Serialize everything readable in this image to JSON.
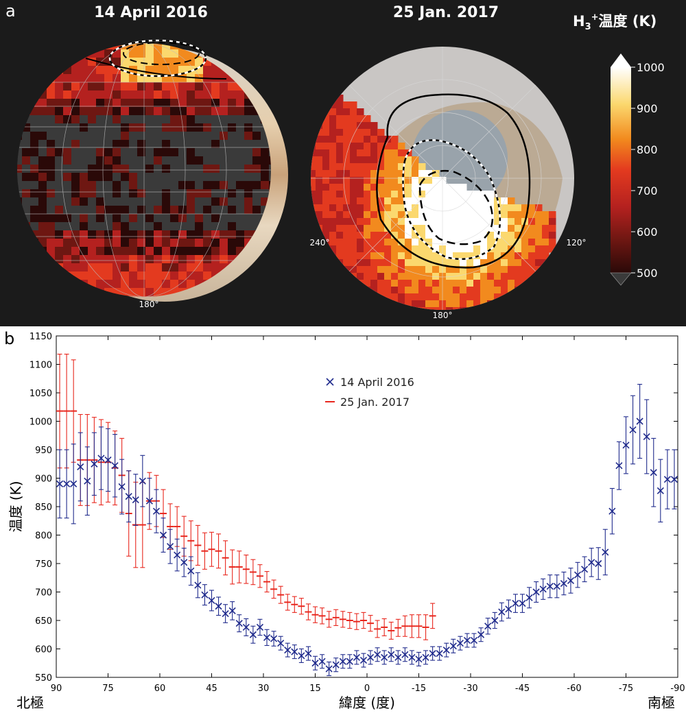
{
  "panel_a": {
    "letter": "a",
    "map_left": {
      "title": "14 April 2016",
      "lon_labels": [
        "180°"
      ]
    },
    "map_right": {
      "title": "25 Jan. 2017",
      "lon_labels": [
        "240°",
        "120°",
        "180°"
      ]
    },
    "colorbar": {
      "title_prefix": "H",
      "title_sub": "3",
      "title_sup": "+",
      "title_suffix": "温度 (K)",
      "ticks": [
        1000,
        900,
        800,
        700,
        600,
        500
      ],
      "colors": [
        "#ffffff",
        "#fbd86e",
        "#f28a1e",
        "#e33a1f",
        "#b4211f",
        "#6e1712",
        "#2a0908",
        "#3a3a3a"
      ]
    }
  },
  "panel_b": {
    "letter": "b",
    "left_label": "北極",
    "right_label": "南極",
    "chart_data": {
      "type": "scatter",
      "xlabel": "緯度 (度)",
      "ylabel": "温度 (K)",
      "xlim": [
        90,
        -90
      ],
      "ylim": [
        550,
        1150
      ],
      "xticks": [
        90,
        75,
        60,
        45,
        30,
        15,
        0,
        -15,
        -30,
        -45,
        -60,
        -75,
        -90
      ],
      "yticks": [
        550,
        600,
        650,
        700,
        750,
        800,
        850,
        900,
        950,
        1000,
        1050,
        1100,
        1150
      ],
      "legend_position": "top-center",
      "series": [
        {
          "name": "14 April 2016",
          "color": "#1f2a8c",
          "marker": "x",
          "x": [
            89,
            87,
            85,
            83,
            81,
            79,
            77,
            75,
            73,
            71,
            69,
            67,
            65,
            63,
            61,
            59,
            57,
            55,
            53,
            51,
            49,
            47,
            45,
            43,
            41,
            39,
            37,
            35,
            33,
            31,
            29,
            27,
            25,
            23,
            21,
            19,
            17,
            15,
            13,
            11,
            9,
            7,
            5,
            3,
            1,
            -1,
            -3,
            -5,
            -7,
            -9,
            -11,
            -13,
            -15,
            -17,
            -19,
            -21,
            -23,
            -25,
            -27,
            -29,
            -31,
            -33,
            -35,
            -37,
            -39,
            -41,
            -43,
            -45,
            -47,
            -49,
            -51,
            -53,
            -55,
            -57,
            -59,
            -61,
            -63,
            -65,
            -67,
            -69,
            -71,
            -73,
            -75,
            -77,
            -79,
            -81,
            -83,
            -85,
            -87,
            -89
          ],
          "y": [
            890,
            890,
            890,
            920,
            895,
            925,
            935,
            932,
            922,
            885,
            868,
            862,
            895,
            860,
            842,
            800,
            780,
            765,
            752,
            737,
            712,
            695,
            685,
            675,
            662,
            667,
            645,
            638,
            625,
            638,
            620,
            618,
            610,
            598,
            595,
            588,
            592,
            575,
            578,
            565,
            572,
            578,
            578,
            585,
            580,
            585,
            590,
            585,
            590,
            585,
            590,
            585,
            582,
            585,
            592,
            592,
            598,
            605,
            610,
            615,
            615,
            625,
            640,
            650,
            665,
            670,
            680,
            680,
            690,
            700,
            705,
            710,
            710,
            715,
            720,
            730,
            740,
            752,
            750,
            770,
            842,
            922,
            958,
            985,
            1000,
            973,
            910,
            878,
            898,
            898
          ],
          "y_err": [
            60,
            60,
            70,
            60,
            60,
            55,
            55,
            55,
            55,
            48,
            45,
            45,
            45,
            40,
            38,
            30,
            30,
            28,
            25,
            25,
            22,
            18,
            18,
            16,
            16,
            16,
            15,
            15,
            15,
            14,
            14,
            13,
            12,
            12,
            12,
            12,
            12,
            12,
            12,
            12,
            12,
            12,
            12,
            12,
            12,
            12,
            12,
            12,
            12,
            12,
            12,
            12,
            12,
            12,
            12,
            12,
            12,
            12,
            12,
            12,
            12,
            12,
            14,
            14,
            16,
            16,
            16,
            16,
            18,
            18,
            18,
            20,
            20,
            20,
            22,
            22,
            22,
            25,
            28,
            40,
            40,
            42,
            50,
            60,
            65,
            65,
            60,
            55,
            52,
            52
          ]
        },
        {
          "name": "25 Jan. 2017",
          "color": "#e8261d",
          "marker": "dash",
          "x": [
            89,
            87,
            85,
            83,
            81,
            79,
            77,
            75,
            73,
            71,
            69,
            67,
            65,
            63,
            61,
            59,
            57,
            55,
            53,
            51,
            49,
            47,
            45,
            43,
            41,
            39,
            37,
            35,
            33,
            31,
            29,
            27,
            25,
            23,
            21,
            19,
            17,
            15,
            13,
            11,
            9,
            7,
            5,
            3,
            1,
            -1,
            -3,
            -5,
            -7,
            -9,
            -11,
            -13,
            -15,
            -17,
            -19
          ],
          "y": [
            1018,
            1018,
            1018,
            932,
            932,
            932,
            928,
            928,
            918,
            905,
            838,
            818,
            818,
            860,
            860,
            838,
            815,
            815,
            798,
            790,
            782,
            772,
            775,
            772,
            760,
            744,
            744,
            740,
            735,
            728,
            718,
            705,
            695,
            682,
            678,
            675,
            665,
            660,
            658,
            652,
            655,
            652,
            650,
            648,
            650,
            645,
            635,
            638,
            632,
            637,
            640,
            640,
            640,
            638,
            658
          ],
          "y_err": [
            100,
            100,
            90,
            80,
            80,
            75,
            75,
            70,
            65,
            65,
            75,
            75,
            75,
            50,
            45,
            42,
            40,
            35,
            35,
            35,
            35,
            32,
            30,
            30,
            30,
            30,
            28,
            25,
            22,
            20,
            18,
            16,
            15,
            14,
            14,
            14,
            14,
            14,
            14,
            14,
            14,
            14,
            14,
            14,
            14,
            14,
            15,
            15,
            15,
            15,
            18,
            20,
            20,
            22,
            22
          ]
        }
      ]
    }
  }
}
